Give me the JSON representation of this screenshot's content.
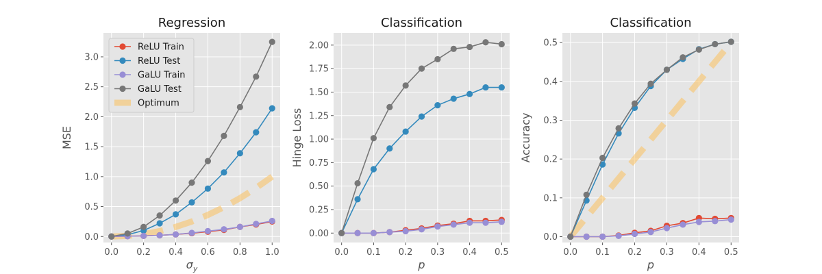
{
  "chart_data": [
    {
      "type": "line",
      "title": "Regression",
      "xlabel": "σ_y",
      "ylabel": "MSE",
      "xlim": [
        -0.05,
        1.05
      ],
      "ylim": [
        -0.1,
        3.4
      ],
      "xticks": [
        0.0,
        0.2,
        0.4,
        0.6,
        0.8,
        1.0
      ],
      "xtick_labels": [
        "0.0",
        "0.2",
        "0.4",
        "0.6",
        "0.8",
        "1.0"
      ],
      "yticks": [
        0.0,
        0.5,
        1.0,
        1.5,
        2.0,
        2.5,
        3.0
      ],
      "ytick_labels": [
        "0.0",
        "0.5",
        "1.0",
        "1.5",
        "2.0",
        "2.5",
        "3.0"
      ],
      "grid": true,
      "legend": "top-left",
      "x": [
        0.0,
        0.1,
        0.2,
        0.3,
        0.4,
        0.5,
        0.6,
        0.7,
        0.8,
        0.9,
        1.0
      ],
      "series": [
        {
          "name": "ReLU Train",
          "color": "#e24a33",
          "values": [
            0.0,
            0.005,
            0.01,
            0.02,
            0.035,
            0.055,
            0.08,
            0.11,
            0.16,
            0.2,
            0.25
          ]
        },
        {
          "name": "ReLU Test",
          "color": "#348abd",
          "values": [
            0.0,
            0.03,
            0.1,
            0.22,
            0.37,
            0.57,
            0.8,
            1.07,
            1.39,
            1.74,
            2.14
          ]
        },
        {
          "name": "GaLU Train",
          "color": "#988ed5",
          "values": [
            0.0,
            0.005,
            0.01,
            0.02,
            0.035,
            0.06,
            0.09,
            0.12,
            0.16,
            0.21,
            0.26
          ]
        },
        {
          "name": "GaLU Test",
          "color": "#777777",
          "values": [
            0.0,
            0.05,
            0.16,
            0.35,
            0.6,
            0.9,
            1.26,
            1.68,
            2.16,
            2.67,
            3.25
          ]
        },
        {
          "name": "Optimum",
          "color": "#fbc15e",
          "style": "dashed-thick",
          "values": [
            0.0,
            0.01,
            0.04,
            0.09,
            0.16,
            0.25,
            0.36,
            0.49,
            0.64,
            0.81,
            1.0
          ]
        }
      ]
    },
    {
      "type": "line",
      "title": "Classification",
      "xlabel": "p",
      "ylabel": "Hinge Loss",
      "xlim": [
        -0.025,
        0.525
      ],
      "ylim": [
        -0.1,
        2.13
      ],
      "xticks": [
        0.0,
        0.1,
        0.2,
        0.3,
        0.4,
        0.5
      ],
      "xtick_labels": [
        "0.0",
        "0.1",
        "0.2",
        "0.3",
        "0.4",
        "0.5"
      ],
      "yticks": [
        0.0,
        0.25,
        0.5,
        0.75,
        1.0,
        1.25,
        1.5,
        1.75,
        2.0
      ],
      "ytick_labels": [
        "0.00",
        "0.25",
        "0.50",
        "0.75",
        "1.00",
        "1.25",
        "1.50",
        "1.75",
        "2.00"
      ],
      "grid": true,
      "x": [
        0.0,
        0.05,
        0.1,
        0.15,
        0.2,
        0.25,
        0.3,
        0.35,
        0.4,
        0.45,
        0.5
      ],
      "series": [
        {
          "name": "ReLU Train",
          "color": "#e24a33",
          "values": [
            0.0,
            0.0,
            0.0,
            0.01,
            0.03,
            0.05,
            0.08,
            0.1,
            0.13,
            0.13,
            0.14
          ]
        },
        {
          "name": "ReLU Test",
          "color": "#348abd",
          "values": [
            0.0,
            0.36,
            0.68,
            0.9,
            1.08,
            1.24,
            1.36,
            1.43,
            1.48,
            1.55,
            1.55
          ]
        },
        {
          "name": "GaLU Train",
          "color": "#988ed5",
          "values": [
            0.0,
            0.0,
            0.0,
            0.01,
            0.02,
            0.04,
            0.07,
            0.09,
            0.11,
            0.11,
            0.12
          ]
        },
        {
          "name": "GaLU Test",
          "color": "#777777",
          "values": [
            0.0,
            0.53,
            1.01,
            1.34,
            1.57,
            1.75,
            1.85,
            1.96,
            1.98,
            2.03,
            2.01
          ]
        }
      ]
    },
    {
      "type": "line",
      "title": "Classification",
      "xlabel": "p",
      "ylabel": "Accuracy",
      "xlim": [
        -0.025,
        0.525
      ],
      "ylim": [
        -0.015,
        0.525
      ],
      "xticks": [
        0.0,
        0.1,
        0.2,
        0.3,
        0.4,
        0.5
      ],
      "xtick_labels": [
        "0.0",
        "0.1",
        "0.2",
        "0.3",
        "0.4",
        "0.5"
      ],
      "yticks": [
        0.0,
        0.1,
        0.2,
        0.3,
        0.4,
        0.5
      ],
      "ytick_labels": [
        "0.0",
        "0.1",
        "0.2",
        "0.3",
        "0.4",
        "0.5"
      ],
      "grid": true,
      "x": [
        0.0,
        0.05,
        0.1,
        0.15,
        0.2,
        0.25,
        0.3,
        0.35,
        0.4,
        0.45,
        0.5
      ],
      "series": [
        {
          "name": "ReLU Train",
          "color": "#e24a33",
          "values": [
            0.0,
            0.0,
            0.0,
            0.003,
            0.01,
            0.015,
            0.028,
            0.035,
            0.048,
            0.046,
            0.048
          ]
        },
        {
          "name": "ReLU Test",
          "color": "#348abd",
          "values": [
            0.0,
            0.093,
            0.186,
            0.266,
            0.332,
            0.388,
            0.43,
            0.458,
            0.483,
            0.496,
            0.502
          ]
        },
        {
          "name": "GaLU Train",
          "color": "#988ed5",
          "values": [
            0.0,
            0.0,
            0.0,
            0.002,
            0.007,
            0.012,
            0.022,
            0.031,
            0.038,
            0.04,
            0.044
          ]
        },
        {
          "name": "GaLU Test",
          "color": "#777777",
          "values": [
            0.0,
            0.108,
            0.203,
            0.279,
            0.343,
            0.394,
            0.43,
            0.462,
            0.482,
            0.496,
            0.502
          ]
        },
        {
          "name": "Optimum",
          "color": "#fbc15e",
          "style": "dashed-thick",
          "values": [
            0.0,
            0.05,
            0.1,
            0.15,
            0.2,
            0.25,
            0.3,
            0.35,
            0.4,
            0.45,
            0.5
          ]
        }
      ]
    }
  ]
}
